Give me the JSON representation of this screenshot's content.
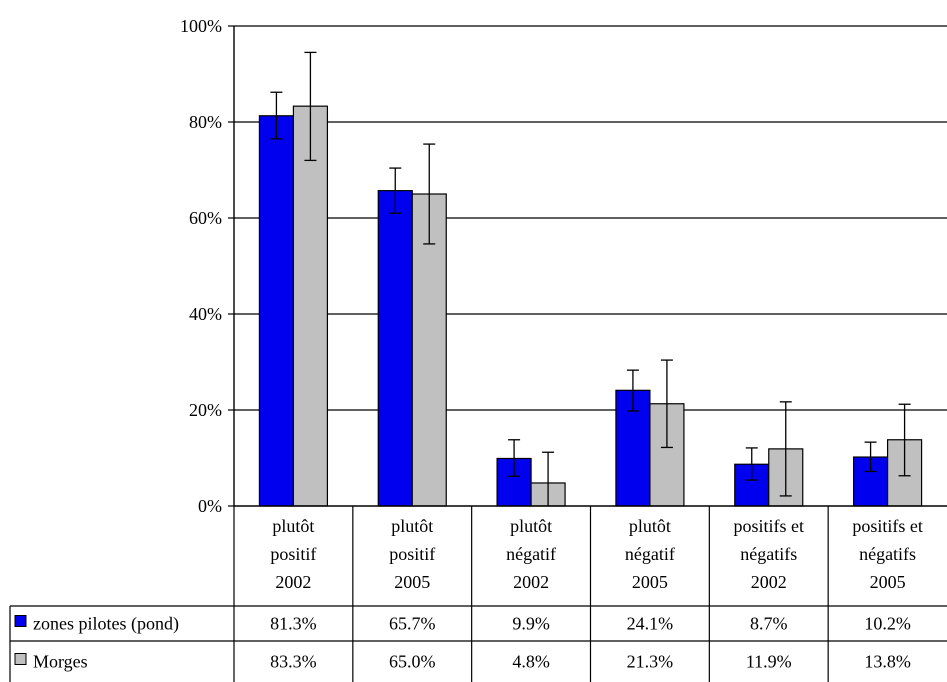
{
  "chart_data": {
    "type": "bar",
    "ylim": [
      0,
      100
    ],
    "y_ticks": [
      0,
      20,
      40,
      60,
      80,
      100
    ],
    "y_tick_labels": [
      "0%",
      "20%",
      "40%",
      "60%",
      "80%",
      "100%"
    ],
    "grid": true,
    "legend_placement": "table-left",
    "categories": [
      [
        "plutôt",
        "positif",
        "2002"
      ],
      [
        "plutôt",
        "positif",
        "2005"
      ],
      [
        "plutôt",
        "négatif",
        "2002"
      ],
      [
        "plutôt",
        "négatif",
        "2005"
      ],
      [
        "positifs et",
        "négatifs",
        "2002"
      ],
      [
        "positifs et",
        "négatifs",
        "2005"
      ]
    ],
    "series": [
      {
        "name": "zones pilotes (pond)",
        "color": "#0000ee",
        "values": [
          81.3,
          65.7,
          9.9,
          24.1,
          8.7,
          10.2
        ],
        "labels": [
          "81.3%",
          "65.7%",
          "9.9%",
          "24.1%",
          "8.7%",
          "10.2%"
        ],
        "error_low": [
          76.5,
          61.0,
          6.2,
          19.8,
          5.4,
          7.2
        ],
        "error_high": [
          86.2,
          70.4,
          13.8,
          28.3,
          12.1,
          13.3
        ]
      },
      {
        "name": "Morges",
        "color": "#c0c0c0",
        "values": [
          83.3,
          65.0,
          4.8,
          21.3,
          11.9,
          13.8
        ],
        "labels": [
          "83.3%",
          "65.0%",
          "4.8%",
          "21.3%",
          "11.9%",
          "13.8%"
        ],
        "error_low": [
          72.0,
          54.6,
          0.0,
          12.2,
          2.1,
          6.3
        ],
        "error_high": [
          94.5,
          75.4,
          11.2,
          30.4,
          21.7,
          21.2
        ]
      }
    ]
  }
}
